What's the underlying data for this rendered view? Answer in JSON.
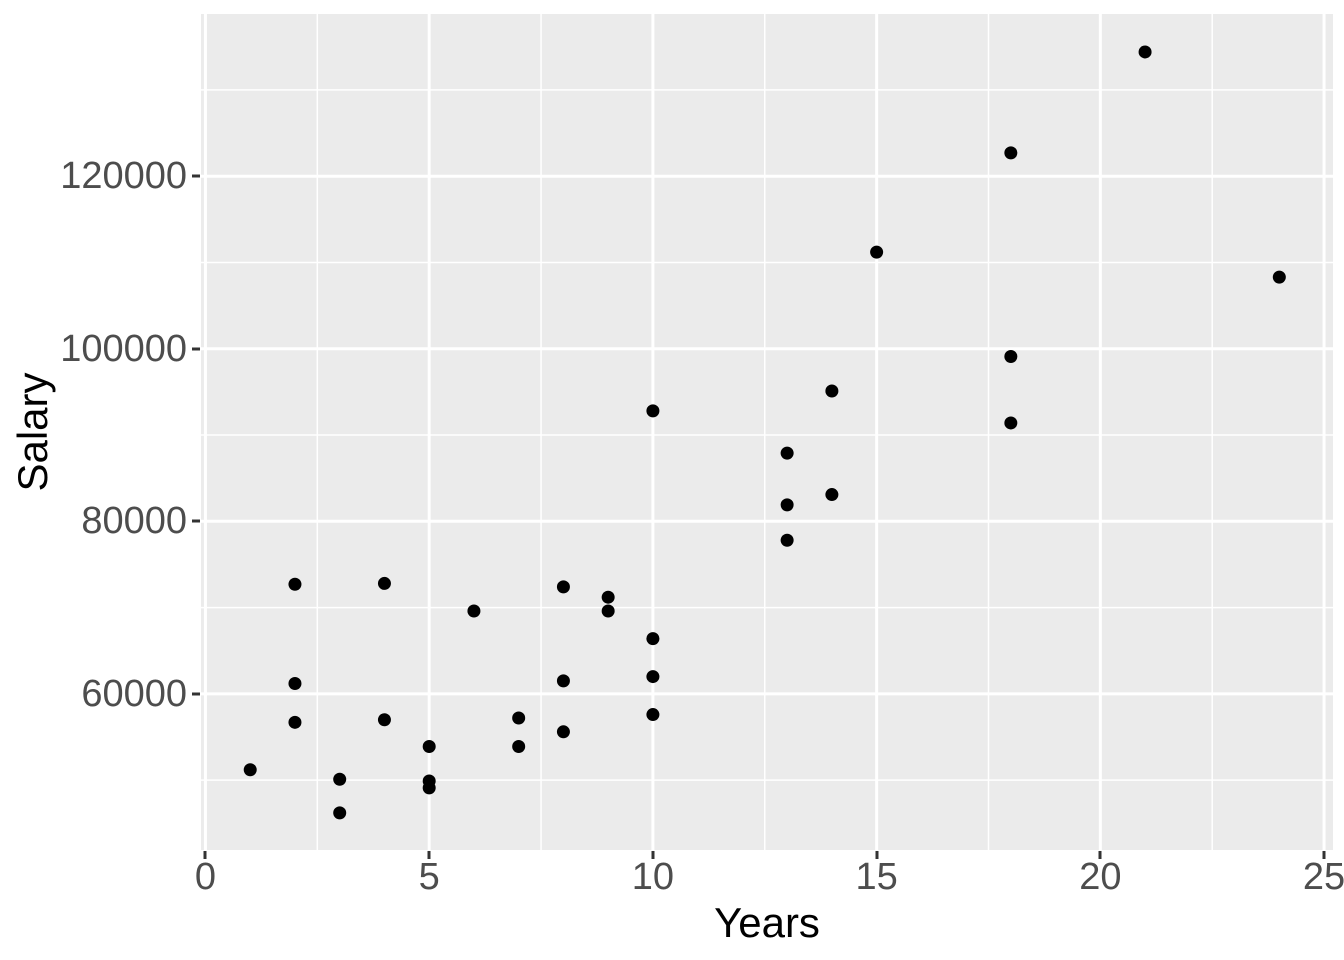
{
  "chart_data": {
    "type": "scatter",
    "title": "",
    "xlabel": "Years",
    "ylabel": "Salary",
    "xlim": [
      -0.1,
      25.2
    ],
    "ylim": [
      41900,
      138800
    ],
    "grid": "major and minor gridlines, white on grey panel",
    "legend": "none",
    "x_ticks": {
      "values": [
        0,
        5,
        10,
        15,
        20,
        25
      ],
      "labels": [
        "0",
        "5",
        "10",
        "15",
        "20",
        "25"
      ]
    },
    "y_ticks": {
      "values": [
        60000,
        80000,
        100000,
        120000
      ],
      "labels": [
        "60000",
        "80000",
        "100000",
        "120000"
      ]
    },
    "x_minor_gridlines": [
      2.5,
      7.5,
      12.5,
      17.5,
      22.5
    ],
    "y_minor_gridlines": [
      50000,
      70000,
      90000,
      110000,
      130000
    ],
    "points": [
      {
        "x": 1,
        "y": 51200
      },
      {
        "x": 2,
        "y": 72700
      },
      {
        "x": 2,
        "y": 61200
      },
      {
        "x": 2,
        "y": 56700
      },
      {
        "x": 3,
        "y": 50100
      },
      {
        "x": 3,
        "y": 46200
      },
      {
        "x": 4,
        "y": 72800
      },
      {
        "x": 4,
        "y": 57000
      },
      {
        "x": 5,
        "y": 53900
      },
      {
        "x": 5,
        "y": 49900
      },
      {
        "x": 5,
        "y": 49100
      },
      {
        "x": 6,
        "y": 69600
      },
      {
        "x": 7,
        "y": 57200
      },
      {
        "x": 7,
        "y": 53900
      },
      {
        "x": 8,
        "y": 72400
      },
      {
        "x": 8,
        "y": 61500
      },
      {
        "x": 8,
        "y": 55600
      },
      {
        "x": 9,
        "y": 71200
      },
      {
        "x": 9,
        "y": 69600
      },
      {
        "x": 10,
        "y": 92800
      },
      {
        "x": 10,
        "y": 66400
      },
      {
        "x": 10,
        "y": 62000
      },
      {
        "x": 10,
        "y": 57600
      },
      {
        "x": 13,
        "y": 87900
      },
      {
        "x": 13,
        "y": 81900
      },
      {
        "x": 13,
        "y": 77800
      },
      {
        "x": 14,
        "y": 95100
      },
      {
        "x": 14,
        "y": 83100
      },
      {
        "x": 15,
        "y": 111200
      },
      {
        "x": 18,
        "y": 122700
      },
      {
        "x": 18,
        "y": 99100
      },
      {
        "x": 18,
        "y": 91400
      },
      {
        "x": 21,
        "y": 134400
      },
      {
        "x": 24,
        "y": 108300
      }
    ],
    "colors": {
      "panel_background": "#EBEBEB",
      "gridline": "#FFFFFF",
      "point": "#000000",
      "tick_label": "#4D4D4D",
      "tick_mark": "#333333",
      "axis_title": "#000000",
      "figure_background": "#FFFFFF"
    },
    "point_radius_px": 6.5
  }
}
